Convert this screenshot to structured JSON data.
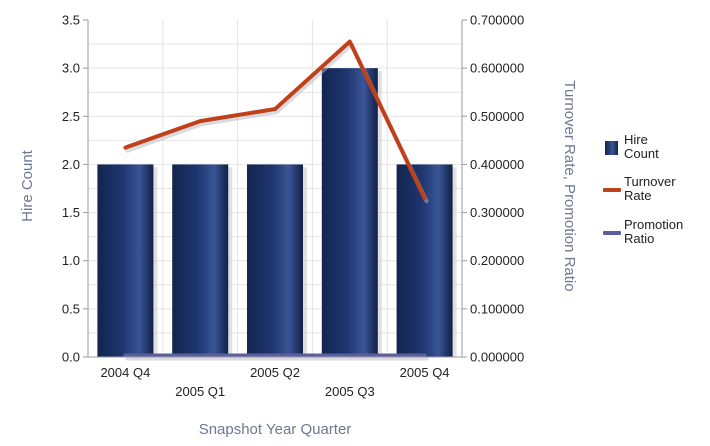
{
  "chart_data": {
    "type": "bar",
    "categories": [
      "2004 Q4",
      "2005 Q1",
      "2005 Q2",
      "2005 Q3",
      "2005 Q4"
    ],
    "series": [
      {
        "name": "Hire Count",
        "type": "bar",
        "axis": "left",
        "color": "#1b2f63",
        "values": [
          2,
          2,
          2,
          3,
          2
        ]
      },
      {
        "name": "Turnover Rate",
        "type": "line",
        "axis": "right",
        "color": "#c0401a",
        "values": [
          0.435,
          0.49,
          0.515,
          0.655,
          0.33
        ]
      },
      {
        "name": "Promotion Ratio",
        "type": "line",
        "axis": "right",
        "color": "#5b5f9e",
        "values": [
          0,
          0,
          0,
          0,
          0
        ]
      }
    ],
    "xlabel": "Snapshot Year Quarter",
    "ylabel": "Hire Count",
    "y2label": "Turnover Rate, Promotion Ratio",
    "ylim": [
      0,
      3.5
    ],
    "y2lim": [
      0,
      0.7
    ],
    "yticks": [
      "0.0",
      "0.5",
      "1.0",
      "1.5",
      "2.0",
      "2.5",
      "3.0",
      "3.5"
    ],
    "y2ticks": [
      "0.000000",
      "0.100000",
      "0.200000",
      "0.300000",
      "0.400000",
      "0.500000",
      "0.600000",
      "0.700000"
    ],
    "grid": true,
    "legend": {
      "position": "right",
      "entries": [
        {
          "lines": [
            "Hire",
            "Count"
          ],
          "marker": "square",
          "color": "#1b2f63"
        },
        {
          "lines": [
            "Turnover",
            "Rate"
          ],
          "marker": "line",
          "color": "#c0401a"
        },
        {
          "lines": [
            "Promotion",
            "Ratio"
          ],
          "marker": "line",
          "color": "#5b5f9e"
        }
      ]
    }
  }
}
